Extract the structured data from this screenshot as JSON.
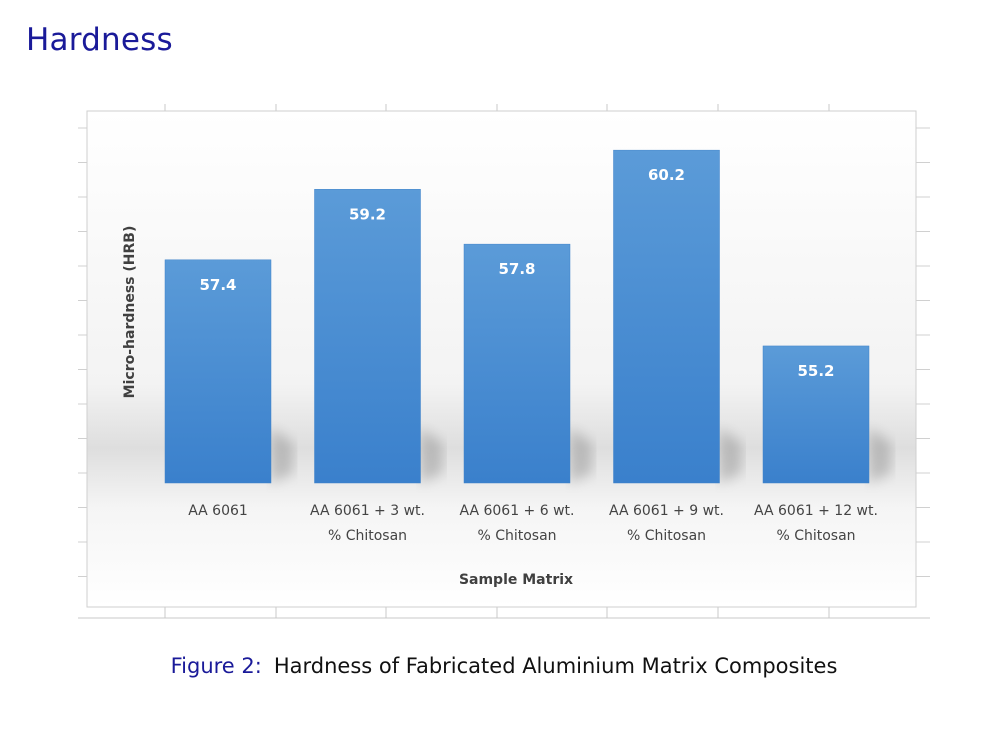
{
  "slide": {
    "title": "Hardness"
  },
  "caption": {
    "label": "Figure 2:",
    "text": "Hardness of Fabricated Aluminium Matrix Composites"
  },
  "chart_data": {
    "type": "bar",
    "categories": [
      [
        "AA 6061"
      ],
      [
        "AA 6061 + 3 wt.",
        "% Chitosan"
      ],
      [
        "AA 6061 + 6 wt.",
        "% Chitosan"
      ],
      [
        "AA 6061 + 9 wt.",
        "% Chitosan"
      ],
      [
        "AA 6061 + 12 wt.",
        "% Chitosan"
      ]
    ],
    "values": [
      57.4,
      59.2,
      57.8,
      60.2,
      55.2
    ],
    "data_labels": [
      "57.4",
      "59.2",
      "57.8",
      "60.2",
      "55.2"
    ],
    "xlabel": "Sample Matrix",
    "ylabel": "Micro-hardness (HRB)",
    "ylim": [
      51.7,
      61.2
    ],
    "bar_color": "#4a8fd4",
    "grid": false,
    "legend": "none"
  }
}
